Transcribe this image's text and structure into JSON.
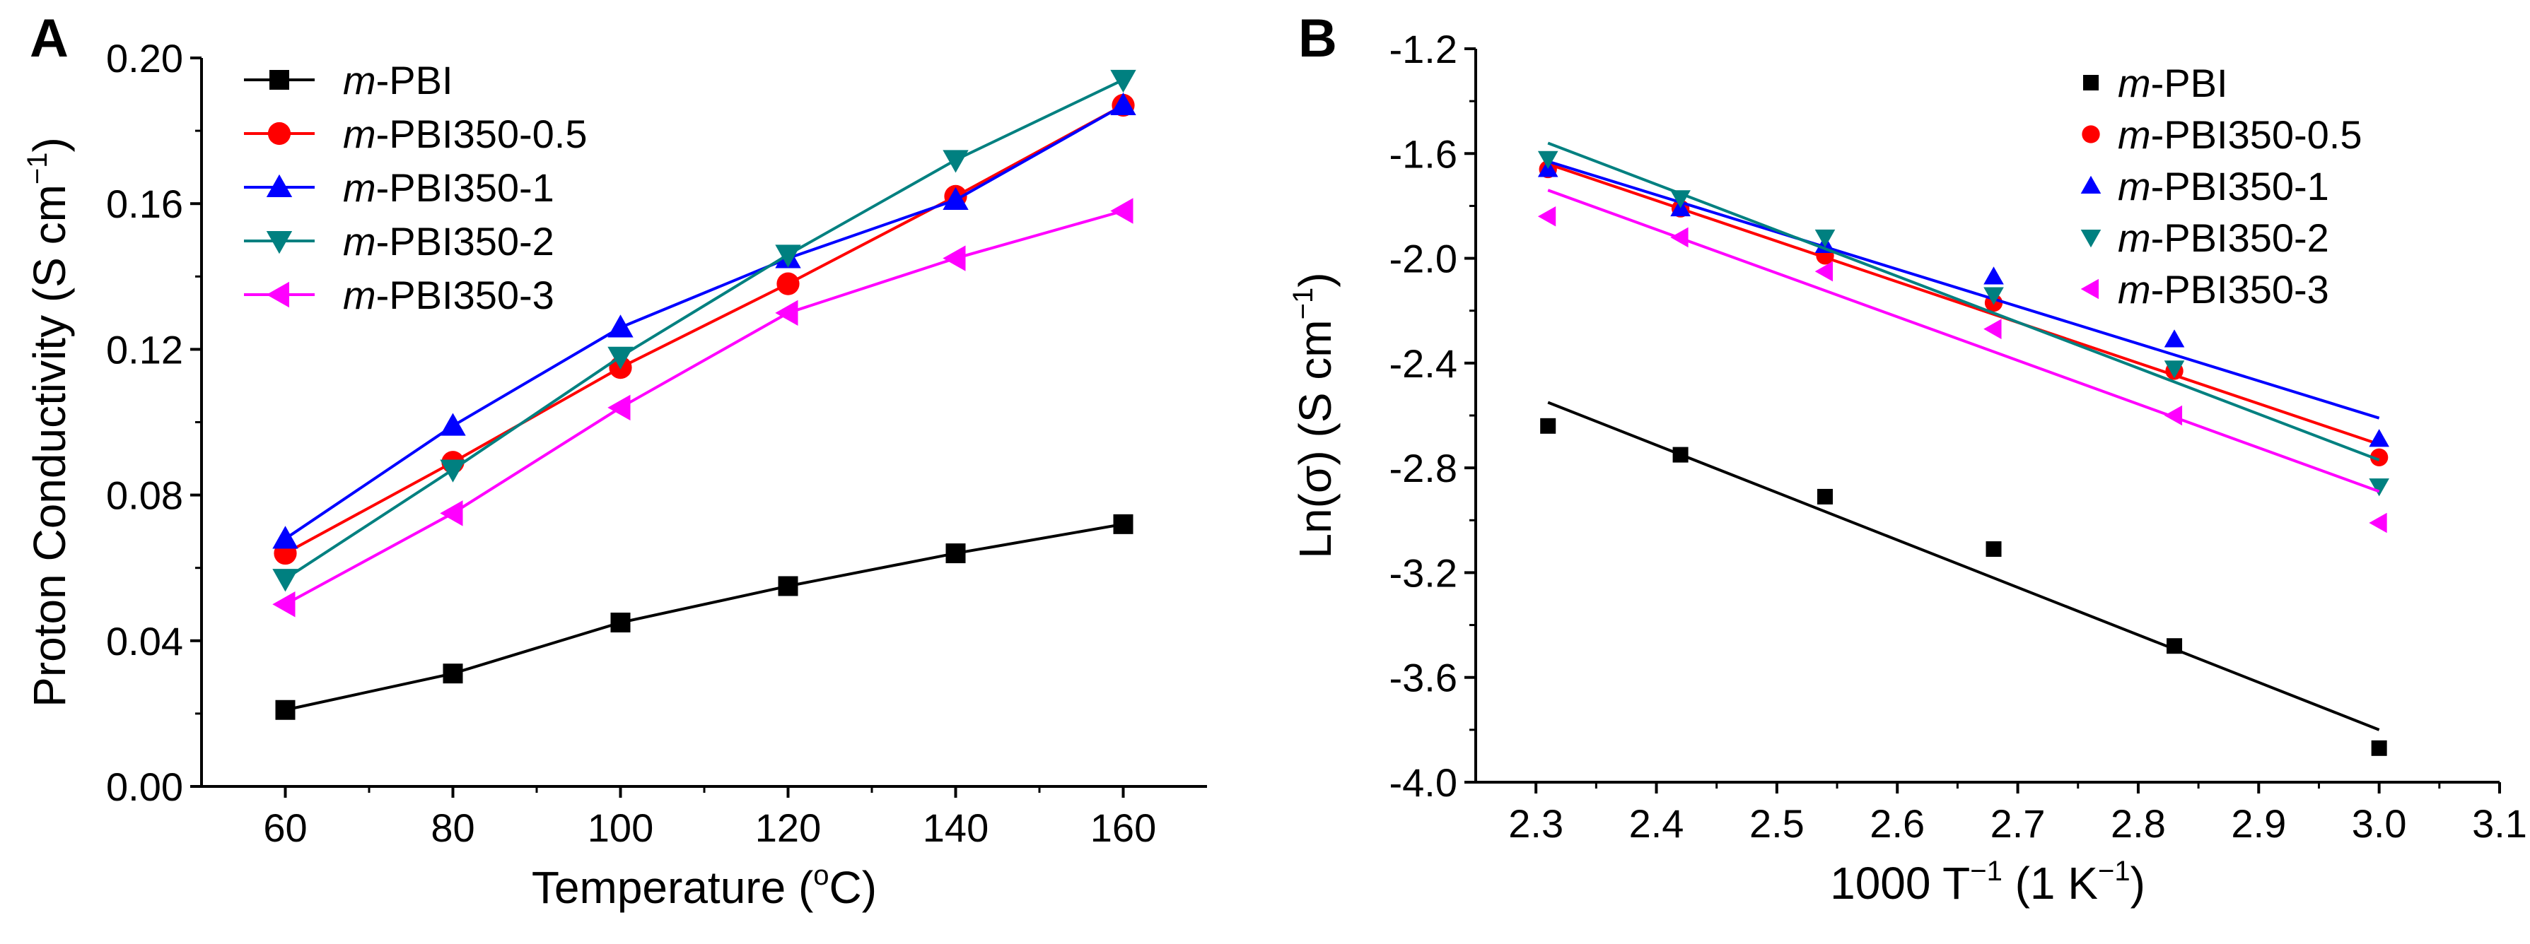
{
  "chart_data": [
    {
      "panel_label": "A",
      "type": "line",
      "xlabel_main": "Temperature (",
      "xlabel_sup": "o",
      "xlabel_end": "C)",
      "ylabel_main": "Proton Conductivity (S cm",
      "ylabel_sup": "−1",
      "ylabel_end": ")",
      "xlim": [
        50,
        170
      ],
      "ylim": [
        0,
        0.2
      ],
      "xticks": [
        "60",
        "80",
        "100",
        "120",
        "140",
        "160"
      ],
      "yticks": [
        "0.00",
        "0.04",
        "0.08",
        "0.12",
        "0.16",
        "0.20"
      ],
      "legend_position": "top-left",
      "x": [
        60,
        80,
        100,
        120,
        140,
        160
      ],
      "series": [
        {
          "name_italic": "m",
          "name_rest": "-PBI",
          "color": "#000000",
          "marker": "square",
          "values": [
            0.021,
            0.031,
            0.045,
            0.055,
            0.064,
            0.072
          ]
        },
        {
          "name_italic": "m",
          "name_rest": "-PBI350-0.5",
          "color": "#ff0000",
          "marker": "circle",
          "values": [
            0.064,
            0.089,
            0.115,
            0.138,
            0.162,
            0.187
          ]
        },
        {
          "name_italic": "m",
          "name_rest": "-PBI350-1",
          "color": "#0000ff",
          "marker": "triangle-up",
          "values": [
            0.068,
            0.099,
            0.126,
            0.145,
            0.161,
            0.187
          ]
        },
        {
          "name_italic": "m",
          "name_rest": "-PBI350-2",
          "color": "#008080",
          "marker": "triangle-down",
          "values": [
            0.057,
            0.087,
            0.118,
            0.146,
            0.172,
            0.194
          ]
        },
        {
          "name_italic": "m",
          "name_rest": "-PBI350-3",
          "color": "#ff00ff",
          "marker": "triangle-left",
          "values": [
            0.05,
            0.075,
            0.104,
            0.13,
            0.145,
            0.158
          ]
        }
      ]
    },
    {
      "panel_label": "B",
      "type": "scatter",
      "xlabel_main": "1000 T",
      "xlabel_sup": "−1",
      "xlabel_mid": " (1 K",
      "xlabel_sup2": "−1",
      "xlabel_end": ")",
      "ylabel_main": "Ln(σ) (S cm",
      "ylabel_sup": "−1",
      "ylabel_end": ")",
      "xlim": [
        2.25,
        3.1
      ],
      "ylim": [
        -4.0,
        -1.2
      ],
      "xticks": [
        "2.3",
        "2.4",
        "2.5",
        "2.6",
        "2.7",
        "2.8",
        "2.9",
        "3.0",
        "3.1"
      ],
      "yticks": [
        "-4.0",
        "-3.6",
        "-3.2",
        "-2.8",
        "-2.4",
        "-2.0",
        "-1.6",
        "-1.2"
      ],
      "legend_position": "top-right",
      "x": [
        2.31,
        2.42,
        2.54,
        2.68,
        2.83,
        3.0
      ],
      "series": [
        {
          "name_italic": "m",
          "name_rest": "-PBI",
          "color": "#000000",
          "marker": "square",
          "values": [
            -2.64,
            -2.75,
            -2.91,
            -3.11,
            -3.48,
            -3.87
          ],
          "fit": {
            "x": [
              2.31,
              3.0
            ],
            "y": [
              -2.55,
              -3.8
            ]
          }
        },
        {
          "name_italic": "m",
          "name_rest": "-PBI350-0.5",
          "color": "#ff0000",
          "marker": "circle",
          "values": [
            -1.66,
            -1.81,
            -1.99,
            -2.17,
            -2.43,
            -2.76
          ],
          "fit": {
            "x": [
              2.31,
              3.0
            ],
            "y": [
              -1.64,
              -2.71
            ]
          }
        },
        {
          "name_italic": "m",
          "name_rest": "-PBI350-1",
          "color": "#0000ff",
          "marker": "triangle-up",
          "values": [
            -1.66,
            -1.81,
            -1.95,
            -2.07,
            -2.31,
            -2.69
          ],
          "fit": {
            "x": [
              2.31,
              3.0
            ],
            "y": [
              -1.63,
              -2.61
            ]
          }
        },
        {
          "name_italic": "m",
          "name_rest": "-PBI350-2",
          "color": "#008080",
          "marker": "triangle-down",
          "values": [
            -1.62,
            -1.77,
            -1.92,
            -2.14,
            -2.42,
            -2.87
          ],
          "fit": {
            "x": [
              2.31,
              3.0
            ],
            "y": [
              -1.56,
              -2.77
            ]
          }
        },
        {
          "name_italic": "m",
          "name_rest": "-PBI350-3",
          "color": "#ff00ff",
          "marker": "triangle-left",
          "values": [
            -1.84,
            -1.92,
            -2.05,
            -2.27,
            -2.6,
            -3.01
          ],
          "fit": {
            "x": [
              2.31,
              3.0
            ],
            "y": [
              -1.74,
              -2.89
            ]
          }
        }
      ]
    }
  ]
}
